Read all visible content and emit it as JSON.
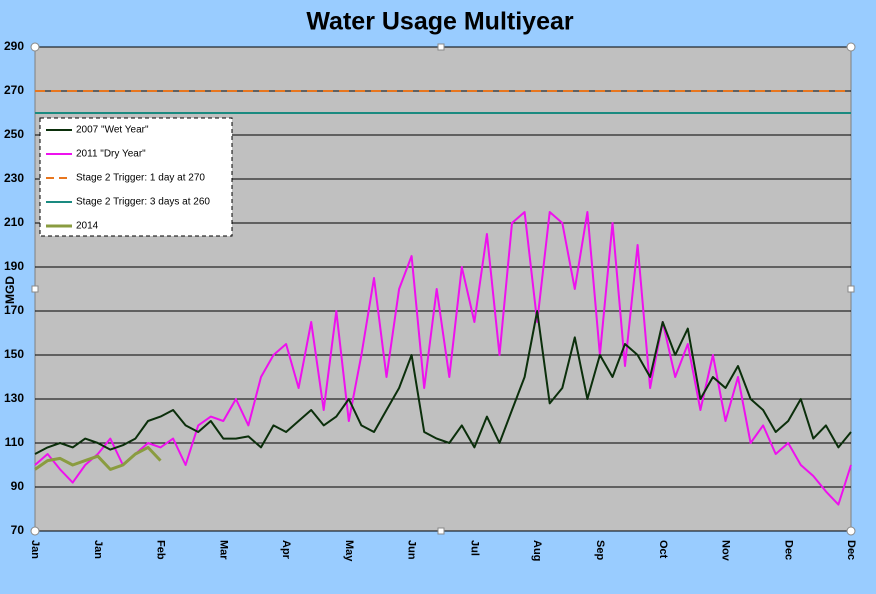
{
  "chart_data": {
    "type": "line",
    "title": "Water Usage Multiyear",
    "y_label": "MGD",
    "categories": [
      "Jan",
      null,
      null,
      null,
      null,
      "Jan",
      null,
      null,
      null,
      null,
      "Feb",
      null,
      null,
      null,
      null,
      "Mar",
      null,
      null,
      null,
      null,
      "Apr",
      null,
      null,
      null,
      null,
      "May",
      null,
      null,
      null,
      null,
      "Jun",
      null,
      null,
      null,
      null,
      "Jul",
      null,
      null,
      null,
      null,
      "Aug",
      null,
      null,
      null,
      null,
      "Sep",
      null,
      null,
      null,
      null,
      "Oct",
      null,
      null,
      null,
      null,
      "Nov",
      null,
      null,
      null,
      null,
      "Dec",
      null,
      null,
      null,
      null,
      "Dec"
    ],
    "series": [
      {
        "name": "2007 \"Wet Year\"",
        "color": "#0b2f0b",
        "values": [
          105,
          108,
          110,
          108,
          112,
          110,
          107,
          109,
          112,
          120,
          122,
          125,
          118,
          115,
          120,
          112,
          112,
          113,
          108,
          118,
          115,
          120,
          125,
          118,
          122,
          130,
          118,
          115,
          125,
          135,
          150,
          115,
          112,
          110,
          118,
          108,
          122,
          110,
          125,
          140,
          170,
          128,
          135,
          158,
          130,
          150,
          140,
          155,
          150,
          140,
          165,
          150,
          162,
          130,
          140,
          135,
          145,
          130,
          125,
          115,
          120,
          130,
          112,
          118,
          108,
          115
        ]
      },
      {
        "name": "2011 \"Dry Year\"",
        "color": "#ee11ee",
        "values": [
          100,
          105,
          98,
          92,
          100,
          105,
          112,
          100,
          105,
          110,
          108,
          112,
          100,
          118,
          122,
          120,
          130,
          118,
          140,
          150,
          155,
          135,
          165,
          125,
          170,
          120,
          150,
          185,
          140,
          180,
          195,
          135,
          180,
          140,
          190,
          165,
          205,
          150,
          210,
          215,
          165,
          215,
          210,
          180,
          215,
          150,
          210,
          145,
          200,
          135,
          165,
          140,
          155,
          125,
          150,
          120,
          140,
          110,
          118,
          105,
          110,
          100,
          95,
          88,
          82,
          100
        ]
      },
      {
        "name": "Stage 2 Trigger: 1 day at 270",
        "color": "#e8761e",
        "value": 270,
        "line_style": "dashed"
      },
      {
        "name": "Stage 2 Trigger: 3 days at 260",
        "color": "#1a8a80",
        "value": 260,
        "line_style": "solid"
      },
      {
        "name": "2014",
        "color": "#8a9c40",
        "values": [
          98,
          102,
          103,
          100,
          102,
          104,
          98,
          100,
          105,
          108,
          102,
          null,
          null,
          null,
          null,
          null,
          null,
          null,
          null,
          null,
          null,
          null,
          null,
          null,
          null,
          null,
          null,
          null,
          null,
          null,
          null,
          null,
          null,
          null,
          null,
          null,
          null,
          null,
          null,
          null,
          null,
          null,
          null,
          null,
          null,
          null,
          null,
          null,
          null,
          null,
          null,
          null,
          null,
          null,
          null,
          null,
          null,
          null,
          null,
          null,
          null,
          null,
          null,
          null,
          null,
          null
        ]
      }
    ],
    "ylim": [
      70,
      290
    ],
    "yticks": [
      70,
      90,
      110,
      130,
      150,
      170,
      190,
      210,
      230,
      250,
      270,
      290
    ],
    "grid": true,
    "legend": "upper left"
  }
}
